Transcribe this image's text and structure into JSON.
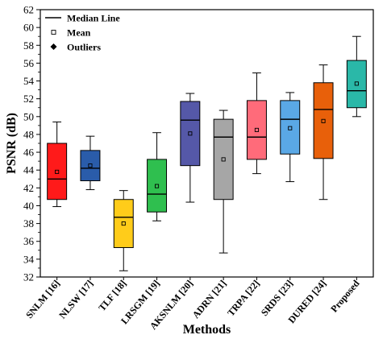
{
  "chart_data": {
    "type": "box",
    "xlabel": "Methods",
    "ylabel": "PSNR (dB)",
    "ylim": [
      32,
      62
    ],
    "yticks": [
      32,
      34,
      36,
      38,
      40,
      42,
      44,
      46,
      48,
      50,
      52,
      54,
      56,
      58,
      60,
      62
    ],
    "grid": false,
    "legend": {
      "placement": "top-left",
      "entries": [
        {
          "label": "Median Line",
          "marker": "line"
        },
        {
          "label": "Mean",
          "marker": "open-square"
        },
        {
          "label": "Outliers",
          "marker": "filled-diamond"
        }
      ]
    },
    "categories": [
      "SNLM [16]",
      "NLSW [17]",
      "TLF [18]",
      "LRSGM [19]",
      "AKSNLM [20]",
      "ADRN [21]",
      "TRPA [22]",
      "SRDS [23]",
      "DURED [24]",
      "Proposed"
    ],
    "boxes": [
      {
        "label": "SNLM [16]",
        "min": 39.9,
        "q1": 40.7,
        "median": 43.0,
        "q3": 47.0,
        "max": 49.4,
        "mean": 43.8,
        "color": "#ff1a1a"
      },
      {
        "label": "NLSW [17]",
        "min": 41.8,
        "q1": 42.8,
        "median": 44.2,
        "q3": 46.2,
        "max": 47.8,
        "mean": 44.5,
        "color": "#2a5caa"
      },
      {
        "label": "TLF [18]",
        "min": 32.7,
        "q1": 35.3,
        "median": 38.7,
        "q3": 40.7,
        "max": 41.7,
        "mean": 38.0,
        "color": "#ffcc1a"
      },
      {
        "label": "LRSGM [19]",
        "min": 38.3,
        "q1": 39.3,
        "median": 41.3,
        "q3": 45.2,
        "max": 48.2,
        "mean": 42.2,
        "color": "#2fbf4f"
      },
      {
        "label": "AKSNLM [20]",
        "min": 40.4,
        "q1": 44.5,
        "median": 49.6,
        "q3": 51.7,
        "max": 52.6,
        "mean": 48.1,
        "color": "#5558a8"
      },
      {
        "label": "ADRN [21]",
        "min": 34.7,
        "q1": 40.7,
        "median": 47.7,
        "q3": 49.7,
        "max": 50.7,
        "mean": 45.2,
        "color": "#a6a6a6"
      },
      {
        "label": "TRPA [22]",
        "min": 43.6,
        "q1": 45.2,
        "median": 47.7,
        "q3": 51.8,
        "max": 54.9,
        "mean": 48.5,
        "color": "#ff6b7a"
      },
      {
        "label": "SRDS [23]",
        "min": 42.7,
        "q1": 45.8,
        "median": 49.7,
        "q3": 51.8,
        "max": 52.7,
        "mean": 48.7,
        "color": "#5aa8e6"
      },
      {
        "label": "DURED [24]",
        "min": 40.7,
        "q1": 45.3,
        "median": 50.8,
        "q3": 53.8,
        "max": 55.8,
        "mean": 49.5,
        "color": "#e8600a"
      },
      {
        "label": "Proposed",
        "min": 50.0,
        "q1": 51.0,
        "median": 52.9,
        "q3": 56.3,
        "max": 59.0,
        "mean": 53.7,
        "color": "#2ab8a8"
      }
    ]
  }
}
